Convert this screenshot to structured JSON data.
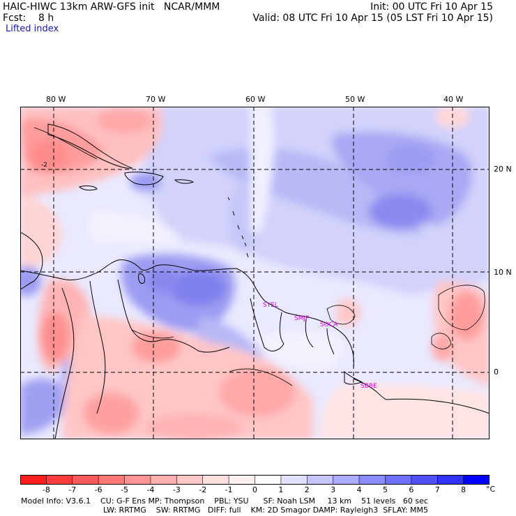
{
  "header": {
    "title_left": "HAIC-HIWC 13km ARW-GFS init   NCAR/MMM",
    "fcst": "Fcst:    8 h",
    "field": "Lifted index",
    "init": "Init: 00 UTC Fri 10 Apr 15",
    "valid": "Valid: 08 UTC Fri 10 Apr 15 (05 LST Fri 10 Apr 15)"
  },
  "map": {
    "lon_labels": [
      "80 W",
      "70 W",
      "60 W",
      "50 W",
      "40 W"
    ],
    "lat_labels": [
      "20 N",
      "10 N",
      "0"
    ],
    "station_labels": [
      "SYEL",
      "SMJP",
      "SOCA",
      "SBBE"
    ],
    "station_color": "#e100e1",
    "contour_label": "-2"
  },
  "colorbar": {
    "ticks": [
      "-8",
      "-7",
      "-6",
      "-5",
      "-4",
      "-3",
      "-2",
      "-1",
      "0",
      "1",
      "2",
      "3",
      "4",
      "5",
      "6",
      "7",
      "8"
    ],
    "unit": "°C",
    "colors": [
      "#ff1e1e",
      "#ff3c3c",
      "#ff5a5a",
      "#ff7676",
      "#ff9494",
      "#ffb0b0",
      "#ffc8c8",
      "#ffe0e0",
      "#fff0f0",
      "#ffffff",
      "#e0e0ff",
      "#c6c6ff",
      "#aaaaff",
      "#8c8cff",
      "#6e6eff",
      "#5050ff",
      "#3232ff",
      "#0000ff"
    ]
  },
  "footer": {
    "line1": "Model Info: V3.6.1    CU: G-F Ens MP: Thompson    PBL: YSU      SF: Noah LSM     13 km    51 levels   60 sec",
    "line2": "LW: RRTMG    SW: RRTMG   DIFF: full    KM: 2D Smagor DAMP: Rayleigh3  SFLAY: MM5"
  }
}
